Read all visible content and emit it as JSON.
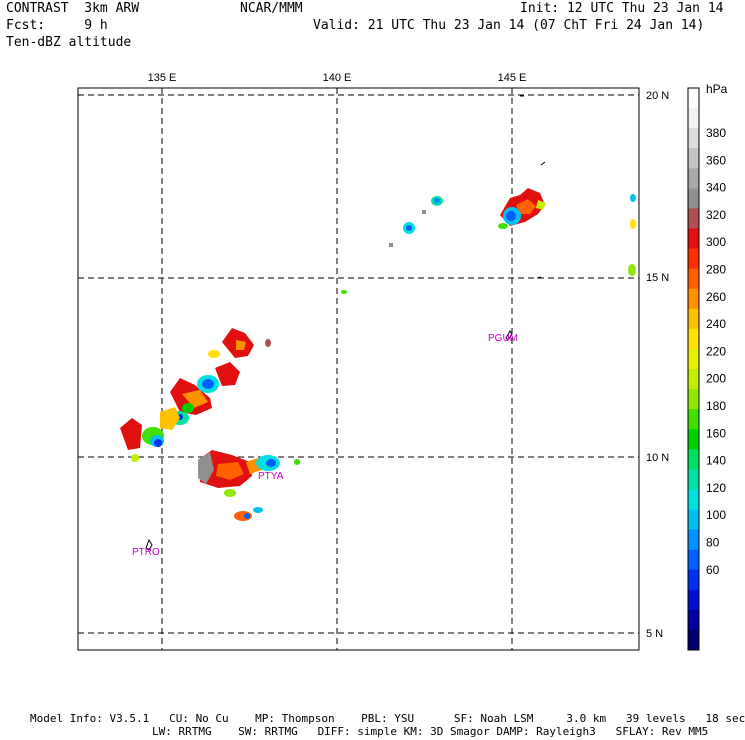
{
  "header": {
    "line1_left": "CONTRAST  3km ARW",
    "line1_mid": "NCAR/MMM",
    "line1_right": "Init: 12 UTC Thu 23 Jan 14",
    "line2_left": "Fcst:     9 h",
    "line2_right": "Valid: 21 UTC Thu 23 Jan 14 (07 ChT Fri 24 Jan 14)",
    "line3_left": "Ten-dBZ altitude"
  },
  "map": {
    "lon_labels": [
      "135 E",
      "140 E",
      "145 E"
    ],
    "lat_labels": [
      "20 N",
      "15 N",
      "10 N",
      "5 N"
    ],
    "stations": [
      {
        "id": "PGUM",
        "color": "#cc00cc"
      },
      {
        "id": "PTYA",
        "color": "#cc00cc"
      },
      {
        "id": "PTRO",
        "color": "#cc00cc"
      }
    ]
  },
  "colorbar": {
    "unit": "hPa",
    "labels": [
      "380",
      "360",
      "340",
      "320",
      "300",
      "280",
      "260",
      "240",
      "220",
      "200",
      "180",
      "160",
      "140",
      "120",
      "100",
      "80",
      "60"
    ],
    "colors": [
      "#ffffff",
      "#f2f2f2",
      "#dcdcdc",
      "#c4c4c4",
      "#a8a8a8",
      "#909090",
      "#b05050",
      "#e01010",
      "#ff3000",
      "#ff6000",
      "#ff9000",
      "#ffc000",
      "#ffe000",
      "#e8f000",
      "#c0f000",
      "#90e800",
      "#40e000",
      "#00d000",
      "#00e060",
      "#00e0a0",
      "#00e0e0",
      "#00c0f0",
      "#0090ff",
      "#0060ff",
      "#0030f0",
      "#0010d0",
      "#0000a0",
      "#000070"
    ]
  },
  "footer": {
    "line1": "Model Info: V3.5.1   CU: No Cu    MP: Thompson    PBL: YSU      SF: Noah LSM     3.0 km   39 levels   18 sec",
    "line2": "LW: RRTMG    SW: RRTMG   DIFF: simple KM: 3D Smagor DAMP: Rayleigh3   SFLAY: Rev MM5"
  }
}
